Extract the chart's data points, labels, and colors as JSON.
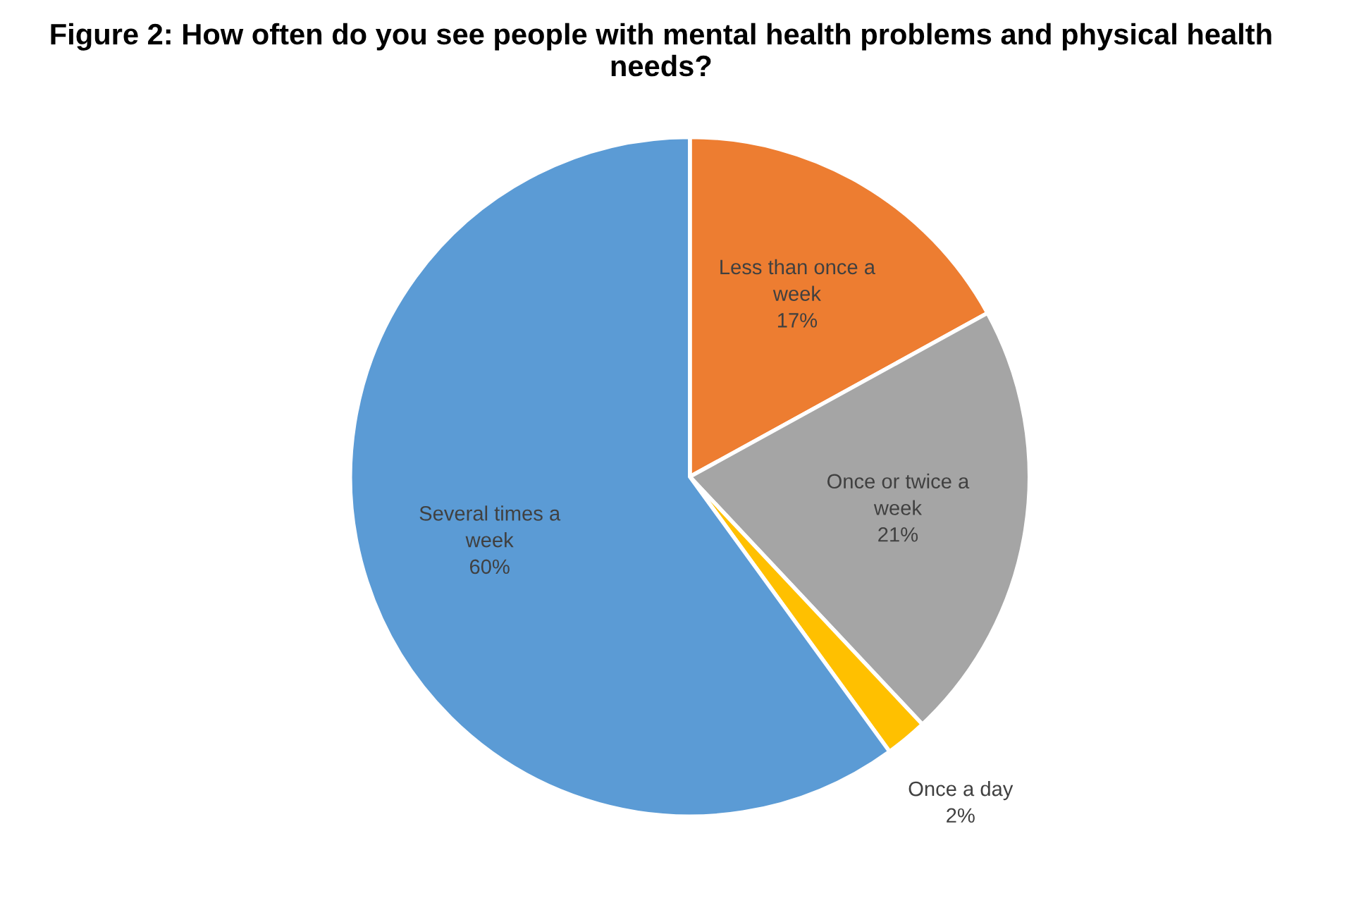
{
  "chart_data": {
    "type": "pie",
    "title": "Figure 2: How often do you see people with mental health problems and physical health needs?",
    "categories": [
      "Less than once a week",
      "Once or twice a week",
      "Once a day",
      "Several times a week"
    ],
    "values": [
      17,
      21,
      2,
      60
    ],
    "colors": [
      "#ed7d31",
      "#a5a5a5",
      "#ffc000",
      "#5b9bd5"
    ],
    "value_labels": [
      "17%",
      "21%",
      "2%",
      "60%"
    ],
    "legend": false
  }
}
